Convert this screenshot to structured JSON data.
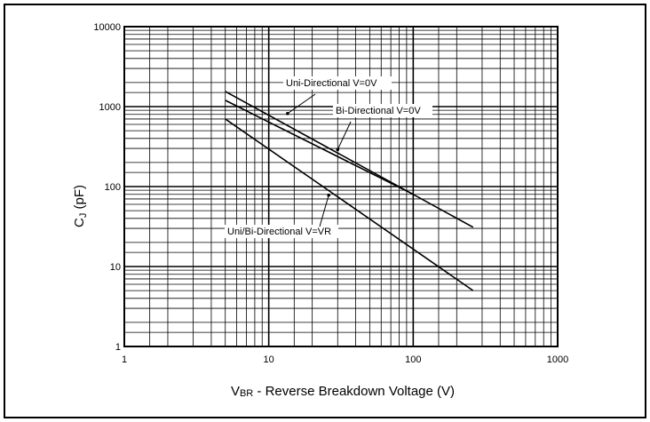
{
  "chart_data": {
    "type": "line",
    "title_partial": "",
    "x_scale": "log",
    "y_scale": "log",
    "xlim": [
      1,
      1000
    ],
    "ylim": [
      1,
      10000
    ],
    "grid": true,
    "x_ticks": [
      "1",
      "10",
      "100",
      "1000"
    ],
    "y_ticks": [
      "1",
      "10",
      "100",
      "1000",
      "10000"
    ],
    "xlabel": {
      "main": "V",
      "sub": "BR",
      "rest": " - Reverse Breakdown Voltage (V)"
    },
    "ylabel": {
      "main": "C",
      "sub": "J",
      "rest": " (pF)"
    },
    "series": [
      {
        "name": "Uni-Directional V=0V",
        "x": [
          5,
          260
        ],
        "y": [
          1550,
          31
        ]
      },
      {
        "name": "Bi-Directional V=0V",
        "x": [
          5,
          100
        ],
        "y": [
          1200,
          80
        ]
      },
      {
        "name": "Uni/Bi-Directional V=VR",
        "x": [
          5,
          260
        ],
        "y": [
          700,
          5
        ]
      }
    ],
    "annotations": [
      {
        "text": "Uni-Directional V=0V",
        "point_x": 13.5,
        "point_y": 820
      },
      {
        "text": "Bi-Directional V=0V",
        "point_x": 30,
        "point_y": 290
      },
      {
        "text": "Uni/Bi-Directional V=VR",
        "point_x": 26,
        "point_y": 78
      }
    ]
  }
}
